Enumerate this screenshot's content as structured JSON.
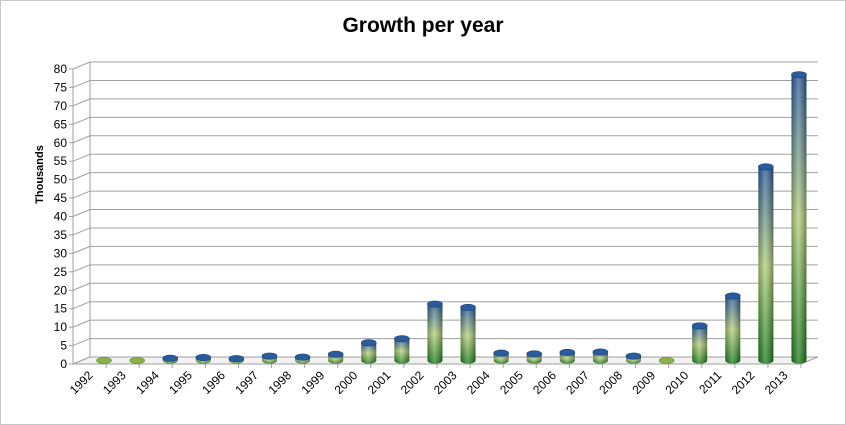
{
  "chart_data": {
    "type": "bar",
    "title": "Growth per year",
    "xlabel": "",
    "ylabel": "Thousands",
    "ylim": [
      0,
      80
    ],
    "y_ticks": [
      "0",
      "5",
      "10",
      "15",
      "20",
      "25",
      "30",
      "35",
      "40",
      "45",
      "50",
      "55",
      "60",
      "65",
      "70",
      "75",
      "80"
    ],
    "categories": [
      "1992",
      "1993",
      "1994",
      "1995",
      "1996",
      "1997",
      "1998",
      "1999",
      "2000",
      "2001",
      "2002",
      "2003",
      "2004",
      "2005",
      "2006",
      "2007",
      "2008",
      "2009",
      "2010",
      "2011",
      "2012",
      "2013"
    ],
    "values": [
      0.05,
      0.1,
      0.6,
      0.8,
      0.5,
      1.2,
      0.9,
      1.7,
      4.8,
      5.9,
      15.3,
      14.4,
      2.0,
      1.8,
      2.2,
      2.3,
      1.2,
      0.1,
      9.4,
      17.5,
      52.5,
      77.5
    ],
    "grid": true,
    "legend": "none",
    "style": "3d-cylinder",
    "colors": {
      "bar_top": "#2a5b9c",
      "bar_mid": "#b3cf7a",
      "bar_bottom": "#1a7d1a",
      "grid": "#a0a0a0"
    }
  }
}
